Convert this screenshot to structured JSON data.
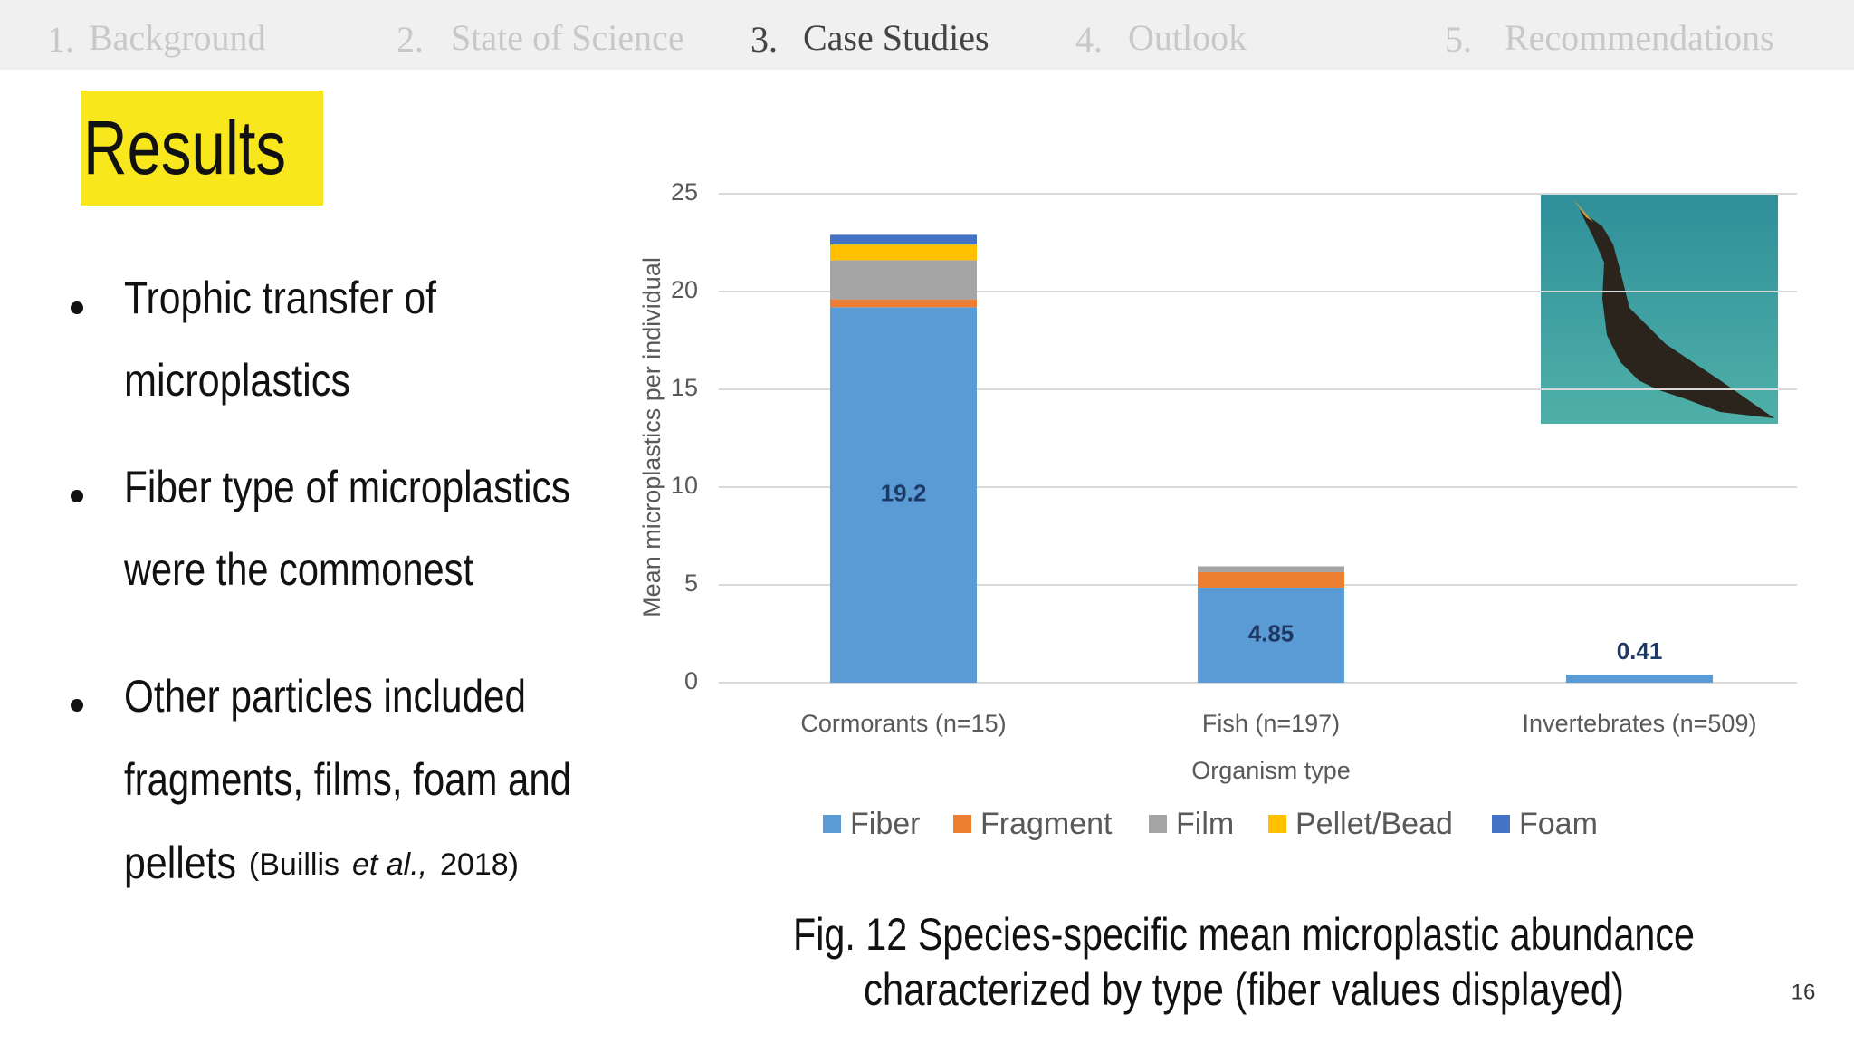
{
  "nav": {
    "items": [
      {
        "number": "1.",
        "label": "Background"
      },
      {
        "number": "2.",
        "label": "State of Science"
      },
      {
        "number": "3.",
        "label": "Case Studies"
      },
      {
        "number": "4.",
        "label": "Outlook"
      },
      {
        "number": "5.",
        "label": "Recommendations"
      }
    ],
    "active": 2
  },
  "title": "Results",
  "bullets": [
    {
      "lines": [
        "Trophic transfer of",
        "microplastics"
      ]
    },
    {
      "lines": [
        "Fiber type of microplastics",
        "were the commonest"
      ]
    },
    {
      "lines": [
        "Other particles included",
        "fragments, films, foam and",
        "pellets"
      ],
      "citation": {
        "before": "(Buillis",
        "italic": "et al.,",
        "after": "2018)"
      }
    }
  ],
  "chart_data": {
    "type": "stacked_bar",
    "categories": [
      "Cormorants (n=15)",
      "Fish (n=197)",
      "Invertebrates (n=509)"
    ],
    "series": [
      {
        "name": "Fiber",
        "color": "#5b9bd5",
        "values": [
          19.2,
          4.85,
          0.41
        ]
      },
      {
        "name": "Fragment",
        "color": "#ed7d31",
        "values": [
          0.4,
          0.8,
          0
        ]
      },
      {
        "name": "Film",
        "color": "#a5a5a5",
        "values": [
          2.0,
          0.3,
          0
        ]
      },
      {
        "name": "Pellet/Bead",
        "color": "#ffc000",
        "values": [
          0.8,
          0,
          0
        ]
      },
      {
        "name": "Foam",
        "color": "#4472c4",
        "values": [
          0.5,
          0,
          0
        ]
      }
    ],
    "ylim": [
      0,
      25
    ],
    "yticks": [
      0,
      5,
      10,
      15,
      20,
      25
    ],
    "grid": true,
    "xlabel": "Organism type",
    "ylabel": "Mean microplastics per individual",
    "legend": "bottom"
  },
  "caption": [
    "Fig. 12 Species-specific mean microplastic abundance",
    "characterized by type (fiber values displayed)"
  ],
  "page_number": "16"
}
